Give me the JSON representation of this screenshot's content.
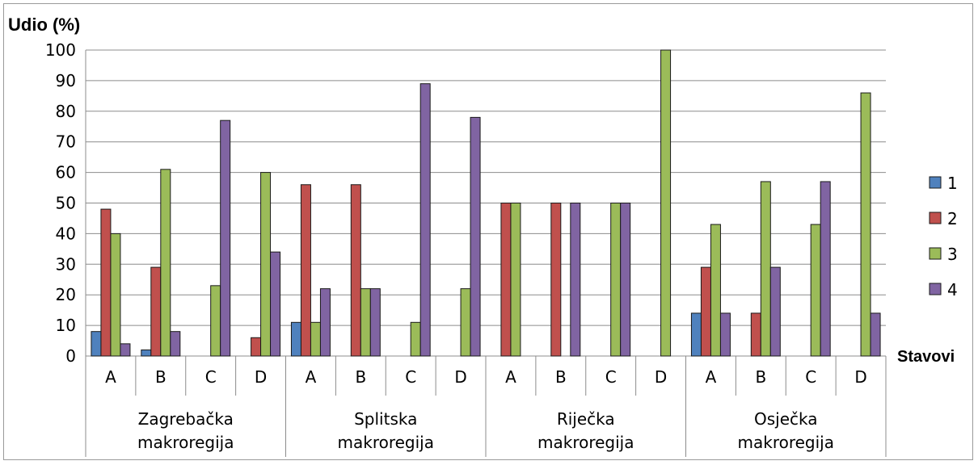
{
  "chart_data": {
    "type": "bar",
    "ylabel": "Udio (%)",
    "xlabel": "Stavovi",
    "ylim": [
      0,
      100
    ],
    "yticks": [
      0,
      10,
      20,
      30,
      40,
      50,
      60,
      70,
      80,
      90,
      100
    ],
    "grid": true,
    "legend_position": "right",
    "groups": [
      {
        "name": [
          "Zagrebačka",
          "makroregija"
        ],
        "categories": [
          "A",
          "B",
          "C",
          "D"
        ]
      },
      {
        "name": [
          "Splitska",
          "makroregija"
        ],
        "categories": [
          "A",
          "B",
          "C",
          "D"
        ]
      },
      {
        "name": [
          "Riječka",
          "makroregija"
        ],
        "categories": [
          "A",
          "B",
          "C",
          "D"
        ]
      },
      {
        "name": [
          "Osječka",
          "makroregija"
        ],
        "categories": [
          "A",
          "B",
          "C",
          "D"
        ]
      }
    ],
    "series": [
      {
        "name": "1",
        "color": "#4f81bd",
        "values": [
          8,
          2,
          0,
          0,
          11,
          0,
          0,
          0,
          0,
          0,
          0,
          0,
          14,
          0,
          0,
          0
        ]
      },
      {
        "name": "2",
        "color": "#c0504d",
        "values": [
          48,
          29,
          0,
          6,
          56,
          56,
          0,
          0,
          50,
          50,
          0,
          0,
          29,
          14,
          0,
          0
        ]
      },
      {
        "name": "3",
        "color": "#9bbb59",
        "values": [
          40,
          61,
          23,
          60,
          11,
          22,
          11,
          22,
          50,
          0,
          50,
          100,
          43,
          57,
          43,
          86
        ]
      },
      {
        "name": "4",
        "color": "#8064a2",
        "values": [
          4,
          8,
          77,
          34,
          22,
          22,
          89,
          78,
          0,
          50,
          50,
          0,
          14,
          29,
          57,
          14
        ]
      }
    ]
  }
}
